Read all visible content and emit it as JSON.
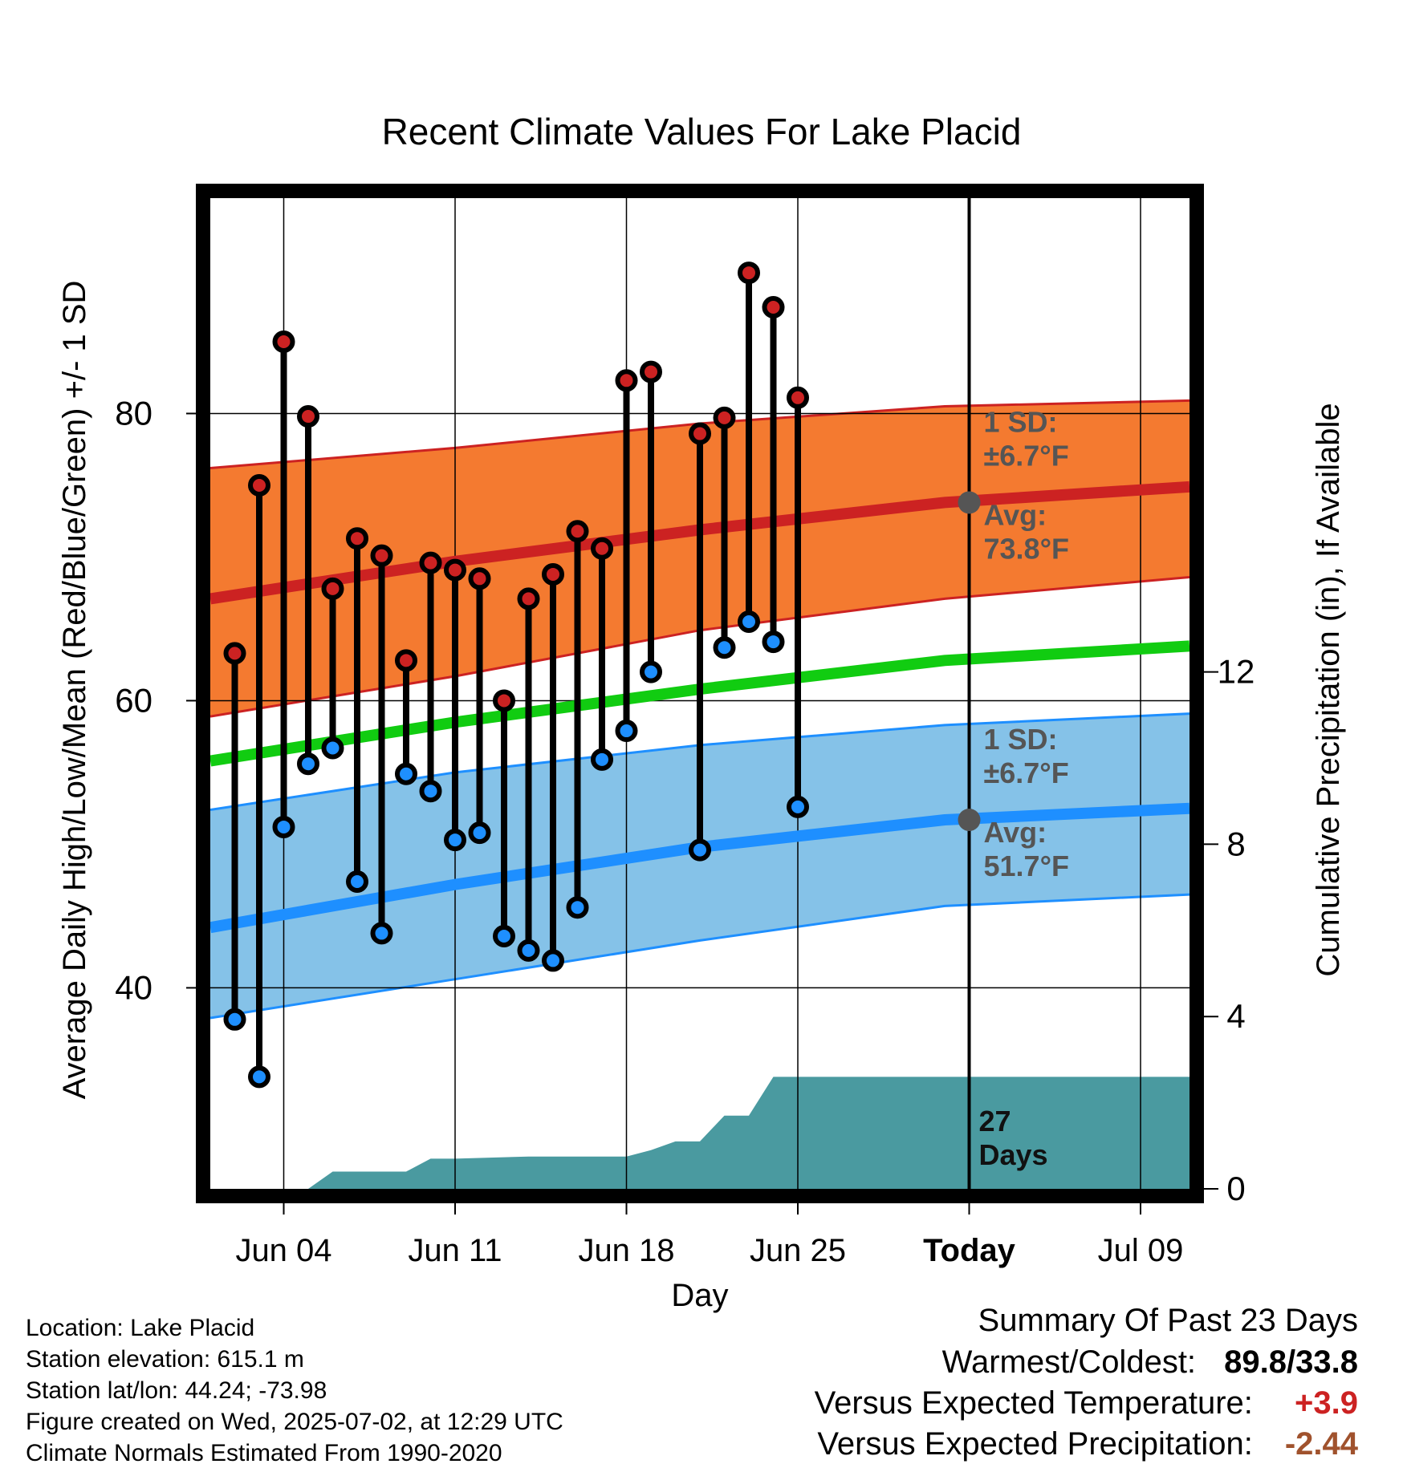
{
  "chart_data": {
    "type": "line",
    "title": "Recent Climate Values For Lake Placid",
    "xlabel": "Day",
    "ylabel": "Average Daily High/Low/Mean (Red/Blue/Green) +/- 1 SD",
    "y2label": "Cumulative Precipitation (in), If Available",
    "x_ticks": [
      "Jun 04",
      "Jun 11",
      "Jun 18",
      "Jun 25",
      "Today",
      "Jul 09"
    ],
    "x_domain": [
      "Jun 01",
      "Jul 11"
    ],
    "ylim": [
      26,
      95
    ],
    "y_ticks": [
      40,
      60,
      80
    ],
    "y2lim": [
      0,
      23
    ],
    "y2_ticks": [
      0,
      4,
      8,
      12
    ],
    "grid": true,
    "days": [
      "Jun 02",
      "Jun 03",
      "Jun 04",
      "Jun 05",
      "Jun 06",
      "Jun 07",
      "Jun 08",
      "Jun 09",
      "Jun 10",
      "Jun 11",
      "Jun 12",
      "Jun 13",
      "Jun 14",
      "Jun 15",
      "Jun 16",
      "Jun 17",
      "Jun 18",
      "Jun 19",
      "Jun 21",
      "Jun 22",
      "Jun 23",
      "Jun 24",
      "Jun 25"
    ],
    "highs": [
      63.3,
      75.0,
      85.0,
      79.8,
      67.8,
      71.3,
      70.1,
      62.8,
      69.6,
      69.1,
      68.5,
      60.0,
      67.1,
      68.8,
      71.8,
      70.6,
      82.3,
      82.9,
      78.6,
      79.7,
      89.8,
      87.4,
      81.1
    ],
    "lows": [
      37.8,
      33.8,
      51.2,
      55.6,
      56.7,
      47.4,
      43.8,
      54.9,
      53.7,
      50.3,
      50.8,
      43.6,
      42.6,
      41.9,
      45.6,
      55.9,
      57.9,
      62.0,
      49.6,
      63.7,
      65.5,
      64.1,
      52.6
    ],
    "normal_high_mean": {
      "x": [
        "Jun 01",
        "Jun 11",
        "Jun 21",
        "Jul 01",
        "Jul 11"
      ],
      "y": [
        67.1,
        69.7,
        71.9,
        73.8,
        74.9
      ]
    },
    "normal_high_band": {
      "upper": [
        76.2,
        77.6,
        79.3,
        80.5,
        80.9
      ],
      "lower": [
        58.9,
        61.7,
        64.9,
        67.1,
        68.6
      ]
    },
    "normal_low_mean": {
      "x": [
        "Jun 01",
        "Jun 11",
        "Jun 21",
        "Jul 01",
        "Jul 11"
      ],
      "y": [
        44.2,
        47.2,
        49.8,
        51.7,
        52.5
      ]
    },
    "normal_low_band": {
      "upper": [
        52.4,
        55.0,
        56.9,
        58.3,
        59.1
      ],
      "lower": [
        37.9,
        40.6,
        43.3,
        45.7,
        46.5
      ]
    },
    "normal_mean": {
      "x": [
        "Jun 01",
        "Jun 11",
        "Jun 21",
        "Jul 01",
        "Jul 11"
      ],
      "y": [
        55.8,
        58.5,
        60.8,
        62.8,
        63.8
      ]
    },
    "precip_cumulative": {
      "x": [
        "Jun 05",
        "Jun 06",
        "Jun 09",
        "Jun 10",
        "Jun 11",
        "Jun 14",
        "Jun 18",
        "Jun 19",
        "Jun 20",
        "Jun 21",
        "Jun 22",
        "Jun 23",
        "Jun 24",
        "Jun 25",
        "Jul 11"
      ],
      "y": [
        0.0,
        0.4,
        0.4,
        0.7,
        0.7,
        0.75,
        0.75,
        0.9,
        1.1,
        1.1,
        1.7,
        1.7,
        2.6,
        2.6,
        2.6
      ]
    },
    "annotations": {
      "high_sd": "1 SD:\n±6.7°F",
      "high_avg": "Avg:\n73.8°F",
      "low_sd": "1 SD:\n±6.7°F",
      "low_avg": "Avg:\n51.7°F",
      "days": "27\nDays"
    },
    "colors": {
      "high_band": "#f47a30",
      "high_line": "#cc2222",
      "low_band": "#85c2e8",
      "low_line": "#1e8fff",
      "mean_line": "#11cc11",
      "precip": "#4a9aa0",
      "high_dot": "#cc2222",
      "low_dot": "#1e8fff",
      "annotation": "#555555"
    }
  },
  "footer": {
    "location": "Location: Lake Placid",
    "elevation": "Station elevation: 615.1 m",
    "latlon": "Station lat/lon: 44.24; -73.98",
    "created": "Figure created on Wed, 2025-07-02, at 12:29 UTC",
    "normals": "Climate Normals Estimated From 1990-2020"
  },
  "summary": {
    "title": "Summary Of Past 23 Days",
    "warm_cold_label": "Warmest/Coldest:",
    "warm_cold_value": "89.8/33.8",
    "temp_label": "Versus Expected Temperature:",
    "temp_value": "+3.9",
    "temp_color": "#cc2222",
    "precip_label": "Versus Expected Precipitation:",
    "precip_value": "-2.44",
    "precip_color": "#a0522d"
  }
}
